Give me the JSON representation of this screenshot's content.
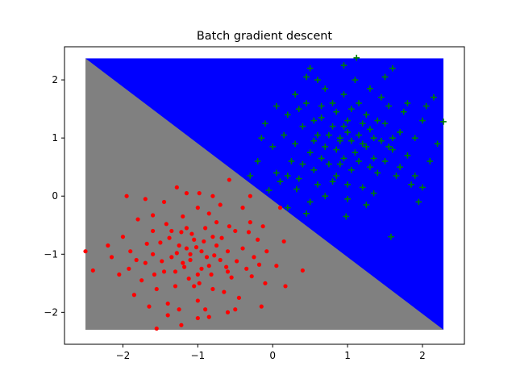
{
  "chart_data": {
    "type": "scatter",
    "title": "Batch gradient descent",
    "xlabel": "",
    "ylabel": "",
    "xlim": [
      -2.78,
      2.56
    ],
    "ylim": [
      -2.55,
      2.57
    ],
    "xticks": [
      -2,
      -1,
      0,
      1,
      2
    ],
    "yticks": [
      -2,
      -1,
      0,
      1,
      2
    ],
    "grid": false,
    "decision_regions": {
      "x_range": [
        -2.5,
        2.28
      ],
      "y_range": [
        -2.3,
        2.37
      ],
      "boundary_line": [
        [
          -2.5,
          2.37
        ],
        [
          2.28,
          -2.3
        ]
      ],
      "class_0_color": "#808080",
      "class_1_color": "#0000ff"
    },
    "series": [
      {
        "marker": "dot",
        "color": "#ff0000",
        "points": [
          [
            -2.5,
            -0.95
          ],
          [
            -2.4,
            -1.28
          ],
          [
            -1.95,
            0.0
          ],
          [
            -1.55,
            -2.28
          ],
          [
            -1.22,
            -2.22
          ],
          [
            0.4,
            -1.28
          ],
          [
            0.17,
            -1.55
          ],
          [
            0.15,
            -0.78
          ],
          [
            0.1,
            -0.2
          ],
          [
            -0.13,
            -0.52
          ],
          [
            -1.6,
            -0.33
          ],
          [
            -1.28,
            0.15
          ],
          [
            -0.98,
            0.05
          ],
          [
            -0.58,
            0.28
          ],
          [
            -0.85,
            -2.08
          ],
          [
            -1.1,
            -1.0
          ],
          [
            -0.95,
            -0.95
          ],
          [
            -1.2,
            -1.15
          ],
          [
            -0.85,
            -1.2
          ],
          [
            -1.05,
            -0.75
          ],
          [
            -1.35,
            -1.05
          ],
          [
            -0.75,
            -0.85
          ],
          [
            -1.0,
            -1.35
          ],
          [
            -1.25,
            -0.85
          ],
          [
            -0.7,
            -1.1
          ],
          [
            -1.45,
            -1.3
          ],
          [
            -0.6,
            -0.95
          ],
          [
            -1.15,
            -0.55
          ],
          [
            -0.9,
            -0.55
          ],
          [
            -1.5,
            -0.8
          ],
          [
            -1.3,
            -1.55
          ],
          [
            -0.55,
            -1.4
          ],
          [
            -1.7,
            -1.15
          ],
          [
            -0.4,
            -0.9
          ],
          [
            -1.6,
            -0.6
          ],
          [
            -0.8,
            -1.6
          ],
          [
            -1.0,
            -1.8
          ],
          [
            -1.4,
            -1.85
          ],
          [
            -0.65,
            -1.65
          ],
          [
            -1.2,
            -0.35
          ],
          [
            -0.85,
            -0.3
          ],
          [
            -0.5,
            -0.6
          ],
          [
            -1.75,
            -1.45
          ],
          [
            -0.35,
            -1.25
          ],
          [
            -1.9,
            -0.95
          ],
          [
            -0.3,
            -0.45
          ],
          [
            -1.55,
            -1.6
          ],
          [
            -0.45,
            -1.75
          ],
          [
            -1.05,
            -1.55
          ],
          [
            -0.75,
            -0.45
          ],
          [
            -1.35,
            -0.6
          ],
          [
            -1.0,
            -0.2
          ],
          [
            -0.6,
            -1.3
          ],
          [
            -1.3,
            -1.3
          ],
          [
            -0.95,
            -1.25
          ],
          [
            -1.15,
            -0.9
          ],
          [
            -0.8,
            -0.7
          ],
          [
            -1.6,
            -1.0
          ],
          [
            -0.2,
            -0.75
          ],
          [
            -2.0,
            -0.7
          ],
          [
            -1.8,
            -0.4
          ],
          [
            -0.25,
            -1.05
          ],
          [
            -1.25,
            -1.95
          ],
          [
            -0.9,
            -1.95
          ],
          [
            -0.5,
            -1.95
          ],
          [
            -1.65,
            -1.9
          ],
          [
            -2.05,
            -1.35
          ],
          [
            -0.1,
            -1.5
          ],
          [
            -1.85,
            -1.7
          ],
          [
            -0.15,
            -1.9
          ],
          [
            -0.7,
            -0.15
          ],
          [
            -1.45,
            -0.1
          ],
          [
            -0.4,
            -0.2
          ],
          [
            -1.1,
            -1.1
          ],
          [
            -0.88,
            -1.05
          ],
          [
            -1.02,
            -0.88
          ],
          [
            -1.18,
            -1.22
          ],
          [
            -0.78,
            -1.02
          ],
          [
            -0.92,
            -0.78
          ],
          [
            -1.28,
            -0.98
          ],
          [
            -0.68,
            -0.72
          ],
          [
            -1.38,
            -0.72
          ],
          [
            -0.62,
            -1.22
          ],
          [
            -1.12,
            -1.42
          ],
          [
            -0.98,
            -1.5
          ],
          [
            -1.48,
            -1.12
          ],
          [
            -0.48,
            -1.12
          ],
          [
            -1.22,
            -0.62
          ],
          [
            -0.82,
            -1.35
          ],
          [
            -1.08,
            -0.65
          ],
          [
            -0.58,
            -0.52
          ],
          [
            -1.42,
            -0.48
          ],
          [
            -1.58,
            -1.35
          ],
          [
            -0.32,
            -0.62
          ],
          [
            -1.68,
            -0.82
          ],
          [
            -0.28,
            -1.38
          ],
          [
            -1.82,
            -1.1
          ],
          [
            -0.18,
            -1.18
          ],
          [
            -1.92,
            -1.25
          ],
          [
            -0.08,
            -0.95
          ],
          [
            -1.0,
            -2.1
          ],
          [
            -1.4,
            -2.05
          ],
          [
            -0.6,
            -2.0
          ],
          [
            -1.15,
            0.05
          ],
          [
            -0.8,
            0.0
          ],
          [
            -1.7,
            -0.05
          ],
          [
            -0.3,
            0.0
          ],
          [
            -2.15,
            -1.05
          ],
          [
            -2.2,
            -0.85
          ],
          [
            0.05,
            -1.2
          ]
        ]
      },
      {
        "marker": "plus",
        "color": "#008000",
        "points": [
          [
            1.12,
            2.38
          ],
          [
            2.28,
            1.28
          ],
          [
            1.58,
            -0.7
          ],
          [
            0.98,
            -0.35
          ],
          [
            0.5,
            -0.1
          ],
          [
            0.32,
            0.12
          ],
          [
            0.05,
            0.4
          ],
          [
            0.9,
            0.95
          ],
          [
            1.0,
            1.1
          ],
          [
            1.2,
            0.9
          ],
          [
            0.8,
            1.2
          ],
          [
            1.1,
            0.75
          ],
          [
            0.7,
            0.85
          ],
          [
            1.3,
            1.15
          ],
          [
            0.95,
            0.65
          ],
          [
            1.25,
            1.4
          ],
          [
            0.6,
            1.05
          ],
          [
            1.45,
            0.95
          ],
          [
            0.85,
            1.45
          ],
          [
            1.05,
            0.45
          ],
          [
            0.5,
            0.75
          ],
          [
            1.5,
            1.25
          ],
          [
            0.75,
            0.55
          ],
          [
            1.35,
            0.65
          ],
          [
            0.65,
            1.35
          ],
          [
            1.15,
            1.6
          ],
          [
            0.4,
            1.2
          ],
          [
            1.6,
            0.8
          ],
          [
            0.95,
            1.75
          ],
          [
            1.4,
            0.4
          ],
          [
            0.3,
            0.9
          ],
          [
            1.7,
            1.1
          ],
          [
            0.55,
            0.45
          ],
          [
            1.8,
            0.7
          ],
          [
            0.2,
            1.4
          ],
          [
            1.0,
            0.2
          ],
          [
            1.55,
            1.55
          ],
          [
            0.45,
            1.6
          ],
          [
            1.75,
            1.45
          ],
          [
            0.25,
            0.6
          ],
          [
            1.2,
            0.15
          ],
          [
            0.8,
            0.25
          ],
          [
            1.9,
            1.0
          ],
          [
            0.15,
            1.05
          ],
          [
            1.65,
            0.35
          ],
          [
            0.35,
            0.3
          ],
          [
            1.3,
            1.85
          ],
          [
            0.7,
            1.85
          ],
          [
            2.0,
            1.3
          ],
          [
            0.0,
            0.85
          ],
          [
            1.85,
            0.2
          ],
          [
            0.1,
            0.25
          ],
          [
            1.1,
            2.0
          ],
          [
            0.6,
            2.0
          ],
          [
            2.1,
            0.6
          ],
          [
            -0.1,
            1.25
          ],
          [
            1.5,
            2.05
          ],
          [
            0.45,
            2.05
          ],
          [
            2.2,
            0.9
          ],
          [
            -0.2,
            0.6
          ],
          [
            0.9,
            1.0
          ],
          [
            1.05,
            0.95
          ],
          [
            0.95,
            1.2
          ],
          [
            1.15,
            1.05
          ],
          [
            0.85,
            0.8
          ],
          [
            1.25,
            0.85
          ],
          [
            0.75,
            1.05
          ],
          [
            1.0,
            1.3
          ],
          [
            1.35,
            1.0
          ],
          [
            0.65,
            0.65
          ],
          [
            1.2,
            1.25
          ],
          [
            0.9,
            0.55
          ],
          [
            1.4,
            1.3
          ],
          [
            0.55,
            0.95
          ],
          [
            1.05,
            1.5
          ],
          [
            1.6,
            1.0
          ],
          [
            0.4,
            0.55
          ],
          [
            1.3,
            0.5
          ],
          [
            0.8,
            1.6
          ],
          [
            1.5,
            0.6
          ],
          [
            0.35,
            1.5
          ],
          [
            1.7,
            0.5
          ],
          [
            0.6,
            0.2
          ],
          [
            1.45,
            1.7
          ],
          [
            0.3,
            1.75
          ],
          [
            1.8,
            1.6
          ],
          [
            0.2,
            0.35
          ],
          [
            1.9,
            0.35
          ],
          [
            0.05,
            1.55
          ],
          [
            2.05,
            1.55
          ],
          [
            -0.15,
            1.0
          ],
          [
            1.0,
            -0.05
          ],
          [
            0.7,
            0.0
          ],
          [
            1.35,
            0.05
          ],
          [
            0.5,
            2.2
          ],
          [
            0.95,
            2.25
          ],
          [
            1.6,
            2.2
          ],
          [
            2.15,
            1.7
          ],
          [
            -0.3,
            0.35
          ],
          [
            0.2,
            -0.2
          ],
          [
            0.45,
            -0.3
          ],
          [
            1.25,
            -0.15
          ],
          [
            1.95,
            -0.1
          ],
          [
            2.0,
            0.15
          ],
          [
            -0.05,
            0.1
          ],
          [
            0.55,
            1.3
          ],
          [
            1.15,
            0.6
          ],
          [
            0.85,
            0.35
          ],
          [
            1.55,
            0.85
          ],
          [
            0.65,
            1.55
          ]
        ]
      }
    ]
  }
}
